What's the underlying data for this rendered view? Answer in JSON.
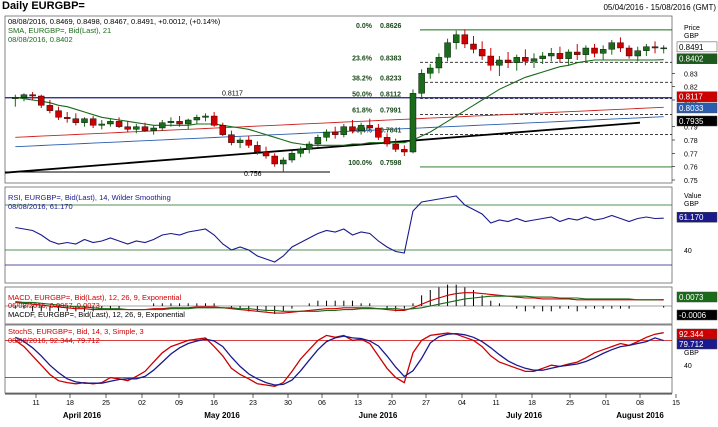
{
  "title": "Daily EURGBP=",
  "date_range": "05/04/2016 - 15/08/2016 (GMT)",
  "price_panel": {
    "legend": [
      "08/08/2016, 0.8469, 0.8498, 0.8467, 0.8491, +0.0012, (+0.14%)",
      "SMA, EURGBP=, Bid(Last), 21",
      "08/08/2016, 0.8402"
    ],
    "axis_title": "Price",
    "axis_unit": "GBP",
    "ticks": [
      "0.83",
      "0.82",
      "0.81",
      "0.79",
      "0.78",
      "0.77",
      "0.76",
      "0.75"
    ],
    "fib_levels": [
      {
        "pct": "0.0%",
        "value": "0.8626"
      },
      {
        "pct": "23.6%",
        "value": "0.8383"
      },
      {
        "pct": "38.2%",
        "value": "0.8233"
      },
      {
        "pct": "50.0%",
        "value": "0.8112"
      },
      {
        "pct": "61.8%",
        "value": "0.7991"
      },
      {
        "pct": "76.4%",
        "value": "0.7841"
      },
      {
        "pct": "100.0%",
        "value": "0.7598"
      }
    ],
    "marker_high": "0.8117",
    "marker_low": "0.756",
    "badges": [
      {
        "text": "0.8491",
        "bg": "#ffffff",
        "fg": "#000000"
      },
      {
        "text": "0.8402",
        "bg": "#1e5a1e",
        "fg": "#ffffff"
      },
      {
        "text": "0.8117",
        "bg": "#cc0000",
        "fg": "#ffffff"
      },
      {
        "text": "0.8033",
        "bg": "#2a5db0",
        "fg": "#ffffff"
      },
      {
        "text": "0.7935",
        "bg": "#000000",
        "fg": "#ffffff"
      }
    ]
  },
  "rsi_panel": {
    "legend": [
      "RSI, EURGBP=, Bid(Last), 14, Wilder Smoothing",
      "08/08/2016, 61.170"
    ],
    "axis_title": "Value",
    "axis_unit": "GBP",
    "badge": "61.170",
    "ticks": [
      "40"
    ]
  },
  "macd_panel": {
    "legend": [
      "MACD, EURGBP=, Bid(Last), 12, 26, 9, Exponential",
      "06/08/2016, 0.0067, 0.0073",
      "MACDF, EURGBP=, Bid(Last), 12, 26, 9, Exponential"
    ],
    "badge_signal": "0.0073",
    "badge_hist": "-0.0006"
  },
  "stoch_panel": {
    "legend": [
      "StochS, EURGBP=, Bid, 14, 3, Simple, 3",
      "08/08/2016, 92.344, 79.712"
    ],
    "badge_red": "92.344",
    "badge_blue": "79.712",
    "axis_unit": "GBP",
    "ticks": [
      "40"
    ]
  },
  "x_axis": {
    "days": [
      "11",
      "18",
      "25",
      "02",
      "09",
      "16",
      "23",
      "30",
      "06",
      "13",
      "20",
      "27",
      "04",
      "11",
      "18",
      "25",
      "01",
      "08",
      "15"
    ],
    "months": [
      "April 2016",
      "May 2016",
      "June 2016",
      "July 2016",
      "August 2016"
    ]
  },
  "colors": {
    "bull": "#1a6b1a",
    "bear": "#cc0000",
    "sma": "#1a6b1a",
    "rsi": "#1a1a8c",
    "stoch_k": "#cc0000",
    "stoch_d": "#1a1a8c",
    "grid": "#888888"
  },
  "chart_data": {
    "type": "candlestick",
    "series_label": "EURGBP=",
    "ohlc": [
      [
        0.811,
        0.814,
        0.805,
        0.812
      ],
      [
        0.812,
        0.815,
        0.809,
        0.814
      ],
      [
        0.814,
        0.816,
        0.81,
        0.813
      ],
      [
        0.813,
        0.814,
        0.804,
        0.806
      ],
      [
        0.806,
        0.81,
        0.8,
        0.802
      ],
      [
        0.802,
        0.805,
        0.795,
        0.797
      ],
      [
        0.797,
        0.801,
        0.793,
        0.796
      ],
      [
        0.796,
        0.8,
        0.791,
        0.793
      ],
      [
        0.793,
        0.797,
        0.79,
        0.796
      ],
      [
        0.796,
        0.798,
        0.789,
        0.791
      ],
      [
        0.791,
        0.795,
        0.788,
        0.792
      ],
      [
        0.792,
        0.796,
        0.79,
        0.794
      ],
      [
        0.794,
        0.797,
        0.789,
        0.79
      ],
      [
        0.79,
        0.794,
        0.786,
        0.788
      ],
      [
        0.788,
        0.792,
        0.785,
        0.79
      ],
      [
        0.79,
        0.793,
        0.786,
        0.787
      ],
      [
        0.787,
        0.791,
        0.784,
        0.789
      ],
      [
        0.789,
        0.795,
        0.787,
        0.793
      ],
      [
        0.793,
        0.797,
        0.79,
        0.794
      ],
      [
        0.794,
        0.798,
        0.79,
        0.792
      ],
      [
        0.792,
        0.796,
        0.788,
        0.795
      ],
      [
        0.795,
        0.799,
        0.792,
        0.797
      ],
      [
        0.797,
        0.8,
        0.794,
        0.798
      ],
      [
        0.798,
        0.801,
        0.79,
        0.791
      ],
      [
        0.791,
        0.793,
        0.783,
        0.784
      ],
      [
        0.784,
        0.787,
        0.776,
        0.778
      ],
      [
        0.778,
        0.782,
        0.774,
        0.78
      ],
      [
        0.78,
        0.783,
        0.774,
        0.776
      ],
      [
        0.776,
        0.779,
        0.769,
        0.771
      ],
      [
        0.771,
        0.775,
        0.766,
        0.768
      ],
      [
        0.768,
        0.77,
        0.76,
        0.762
      ],
      [
        0.762,
        0.767,
        0.756,
        0.765
      ],
      [
        0.765,
        0.772,
        0.763,
        0.77
      ],
      [
        0.77,
        0.775,
        0.767,
        0.773
      ],
      [
        0.773,
        0.779,
        0.77,
        0.777
      ],
      [
        0.777,
        0.784,
        0.775,
        0.782
      ],
      [
        0.782,
        0.788,
        0.779,
        0.786
      ],
      [
        0.786,
        0.79,
        0.781,
        0.784
      ],
      [
        0.784,
        0.792,
        0.782,
        0.79
      ],
      [
        0.79,
        0.795,
        0.785,
        0.787
      ],
      [
        0.787,
        0.793,
        0.784,
        0.791
      ],
      [
        0.791,
        0.796,
        0.788,
        0.789
      ],
      [
        0.789,
        0.792,
        0.78,
        0.782
      ],
      [
        0.782,
        0.785,
        0.775,
        0.777
      ],
      [
        0.777,
        0.781,
        0.771,
        0.773
      ],
      [
        0.773,
        0.776,
        0.768,
        0.771
      ],
      [
        0.771,
        0.818,
        0.77,
        0.815
      ],
      [
        0.815,
        0.833,
        0.812,
        0.83
      ],
      [
        0.83,
        0.837,
        0.826,
        0.834
      ],
      [
        0.834,
        0.845,
        0.83,
        0.842
      ],
      [
        0.842,
        0.856,
        0.839,
        0.853
      ],
      [
        0.853,
        0.862,
        0.848,
        0.859
      ],
      [
        0.859,
        0.863,
        0.849,
        0.852
      ],
      [
        0.852,
        0.858,
        0.845,
        0.848
      ],
      [
        0.848,
        0.854,
        0.84,
        0.843
      ],
      [
        0.843,
        0.849,
        0.832,
        0.836
      ],
      [
        0.836,
        0.843,
        0.828,
        0.84
      ],
      [
        0.84,
        0.846,
        0.834,
        0.838
      ],
      [
        0.838,
        0.844,
        0.832,
        0.842
      ],
      [
        0.842,
        0.848,
        0.836,
        0.839
      ],
      [
        0.839,
        0.845,
        0.834,
        0.841
      ],
      [
        0.841,
        0.846,
        0.837,
        0.843
      ],
      [
        0.843,
        0.849,
        0.839,
        0.845
      ],
      [
        0.845,
        0.85,
        0.838,
        0.841
      ],
      [
        0.841,
        0.848,
        0.836,
        0.846
      ],
      [
        0.846,
        0.852,
        0.84,
        0.844
      ],
      [
        0.844,
        0.851,
        0.838,
        0.849
      ],
      [
        0.849,
        0.852,
        0.842,
        0.845
      ],
      [
        0.845,
        0.851,
        0.84,
        0.848
      ],
      [
        0.848,
        0.855,
        0.844,
        0.853
      ],
      [
        0.853,
        0.857,
        0.846,
        0.849
      ],
      [
        0.849,
        0.851,
        0.841,
        0.843
      ],
      [
        0.843,
        0.85,
        0.839,
        0.847
      ],
      [
        0.847,
        0.852,
        0.843,
        0.85
      ],
      [
        0.85,
        0.854,
        0.845,
        0.849
      ],
      [
        0.849,
        0.851,
        0.845,
        0.8491
      ]
    ],
    "ylim": [
      0.75,
      0.87
    ],
    "sma21": [
      0.812,
      0.811,
      0.81,
      0.809,
      0.808,
      0.806,
      0.805,
      0.803,
      0.801,
      0.799,
      0.797,
      0.796,
      0.795,
      0.794,
      0.793,
      0.792,
      0.791,
      0.791,
      0.791,
      0.791,
      0.791,
      0.792,
      0.792,
      0.792,
      0.791,
      0.79,
      0.789,
      0.788,
      0.786,
      0.784,
      0.782,
      0.78,
      0.778,
      0.777,
      0.776,
      0.776,
      0.776,
      0.776,
      0.776,
      0.777,
      0.777,
      0.778,
      0.778,
      0.778,
      0.778,
      0.778,
      0.78,
      0.783,
      0.786,
      0.79,
      0.794,
      0.798,
      0.802,
      0.806,
      0.81,
      0.814,
      0.818,
      0.821,
      0.824,
      0.827,
      0.829,
      0.831,
      0.833,
      0.835,
      0.836,
      0.838,
      0.839,
      0.84,
      0.84,
      0.84,
      0.84,
      0.84,
      0.84,
      0.84,
      0.84,
      0.8402
    ],
    "rsi": [
      55,
      54,
      53,
      50,
      46,
      44,
      45,
      44,
      47,
      45,
      46,
      48,
      46,
      44,
      46,
      45,
      47,
      50,
      51,
      50,
      52,
      53,
      54,
      50,
      44,
      40,
      42,
      40,
      36,
      34,
      32,
      36,
      42,
      45,
      48,
      51,
      53,
      52,
      54,
      50,
      52,
      51,
      46,
      42,
      39,
      38,
      66,
      72,
      73,
      74,
      75,
      76,
      70,
      67,
      64,
      58,
      60,
      59,
      61,
      59,
      60,
      61,
      62,
      59,
      61,
      60,
      62,
      60,
      61,
      63,
      61,
      59,
      61,
      62,
      61,
      61.17
    ],
    "stoch_k": [
      80,
      70,
      55,
      40,
      25,
      15,
      12,
      10,
      12,
      10,
      12,
      20,
      18,
      15,
      22,
      30,
      45,
      60,
      70,
      75,
      80,
      82,
      84,
      70,
      55,
      35,
      25,
      18,
      10,
      8,
      6,
      12,
      30,
      50,
      65,
      80,
      88,
      85,
      88,
      80,
      82,
      75,
      55,
      35,
      20,
      12,
      60,
      80,
      88,
      90,
      92,
      90,
      85,
      80,
      70,
      55,
      45,
      40,
      35,
      30,
      30,
      35,
      40,
      38,
      42,
      45,
      52,
      60,
      65,
      70,
      75,
      72,
      78,
      85,
      90,
      92.344
    ],
    "stoch_d": [
      85,
      78,
      68,
      55,
      40,
      28,
      18,
      13,
      11,
      11,
      11,
      14,
      17,
      18,
      18,
      22,
      32,
      45,
      58,
      68,
      75,
      79,
      82,
      79,
      70,
      53,
      38,
      26,
      18,
      12,
      8,
      9,
      16,
      31,
      48,
      65,
      78,
      84,
      87,
      84,
      83,
      79,
      71,
      55,
      37,
      22,
      31,
      51,
      76,
      86,
      90,
      91,
      89,
      85,
      78,
      68,
      57,
      47,
      40,
      35,
      32,
      32,
      35,
      38,
      40,
      42,
      46,
      52,
      59,
      65,
      70,
      72,
      75,
      78,
      84,
      79.712
    ],
    "macd": [
      0.004,
      0.003,
      0.002,
      0.001,
      0.0,
      -0.001,
      -0.002,
      -0.003,
      -0.003,
      -0.004,
      -0.004,
      -0.004,
      -0.004,
      -0.004,
      -0.004,
      -0.004,
      -0.003,
      -0.003,
      -0.002,
      -0.002,
      -0.002,
      -0.001,
      -0.001,
      -0.001,
      -0.002,
      -0.003,
      -0.004,
      -0.005,
      -0.006,
      -0.007,
      -0.008,
      -0.008,
      -0.007,
      -0.006,
      -0.005,
      -0.004,
      -0.003,
      -0.003,
      -0.002,
      -0.002,
      -0.002,
      -0.002,
      -0.003,
      -0.004,
      -0.005,
      -0.005,
      -0.002,
      0.002,
      0.006,
      0.009,
      0.012,
      0.014,
      0.015,
      0.015,
      0.014,
      0.013,
      0.012,
      0.011,
      0.01,
      0.009,
      0.009,
      0.008,
      0.008,
      0.008,
      0.008,
      0.007,
      0.007,
      0.007,
      0.007,
      0.007,
      0.007,
      0.007,
      0.007,
      0.007,
      0.007,
      0.0067
    ],
    "macd_signal": [
      0.005,
      0.004,
      0.004,
      0.003,
      0.002,
      0.001,
      0.0,
      -0.001,
      -0.001,
      -0.002,
      -0.003,
      -0.003,
      -0.003,
      -0.004,
      -0.004,
      -0.004,
      -0.004,
      -0.004,
      -0.003,
      -0.003,
      -0.003,
      -0.002,
      -0.002,
      -0.002,
      -0.002,
      -0.002,
      -0.003,
      -0.003,
      -0.004,
      -0.005,
      -0.005,
      -0.006,
      -0.006,
      -0.006,
      -0.006,
      -0.006,
      -0.005,
      -0.005,
      -0.004,
      -0.004,
      -0.003,
      -0.003,
      -0.003,
      -0.003,
      -0.003,
      -0.004,
      -0.003,
      -0.002,
      0.0,
      0.002,
      0.004,
      0.006,
      0.008,
      0.009,
      0.01,
      0.011,
      0.011,
      0.011,
      0.011,
      0.011,
      0.01,
      0.01,
      0.01,
      0.009,
      0.009,
      0.009,
      0.008,
      0.008,
      0.008,
      0.008,
      0.008,
      0.008,
      0.007,
      0.007,
      0.007,
      0.0073
    ]
  }
}
